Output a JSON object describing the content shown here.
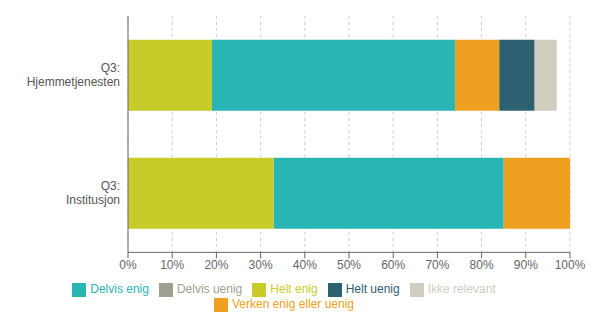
{
  "chart_data": {
    "type": "bar",
    "orientation": "horizontal",
    "stacked": true,
    "categories": [
      "Q3:\nHjemmetjenesten",
      "Q3:\nInstitusjon"
    ],
    "series": [
      {
        "name": "Helt enig",
        "color": "#c8cc2a",
        "values": [
          19,
          33
        ]
      },
      {
        "name": "Delvis enig",
        "color": "#2ab5b5",
        "values": [
          55,
          52
        ]
      },
      {
        "name": "Verken enig eller uenig",
        "color": "#f0a020",
        "values": [
          10,
          15
        ]
      },
      {
        "name": "Delvis uenig",
        "color": "#a0a090",
        "values": [
          0,
          0
        ]
      },
      {
        "name": "Helt uenig",
        "color": "#2d6070",
        "values": [
          8,
          0
        ]
      },
      {
        "name": "Ikke relevant",
        "color": "#d0ccc0",
        "values": [
          5,
          0
        ]
      }
    ],
    "xlim": [
      0,
      100
    ],
    "xticks": [
      {
        "value": 0,
        "label": "0%"
      },
      {
        "value": 10,
        "label": "10%"
      },
      {
        "value": 20,
        "label": "20%"
      },
      {
        "value": 30,
        "label": "30%"
      },
      {
        "value": 40,
        "label": "40%"
      },
      {
        "value": 50,
        "label": "50%"
      },
      {
        "value": 60,
        "label": "60%"
      },
      {
        "value": 70,
        "label": "70%"
      },
      {
        "value": 80,
        "label": "80%"
      },
      {
        "value": 90,
        "label": "90%"
      },
      {
        "value": 100,
        "label": "100%"
      }
    ],
    "grid": true,
    "legend": "bottom"
  }
}
